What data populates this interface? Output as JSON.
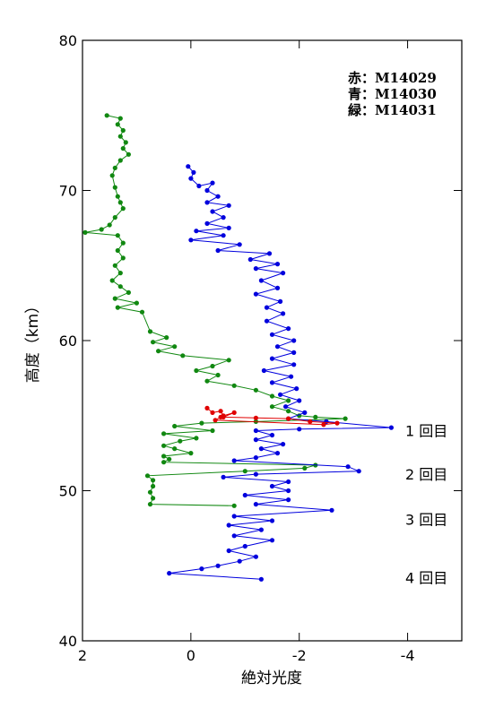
{
  "chart_data": {
    "type": "line",
    "xlabel": "絶対光度",
    "ylabel": "高度（km）",
    "xlim": [
      2,
      -5
    ],
    "ylim": [
      40,
      80
    ],
    "x_ticks": [
      2,
      0,
      -2,
      -4
    ],
    "x_tick_labels": [
      "2",
      "0",
      "-2",
      "-4"
    ],
    "y_ticks": [
      40,
      50,
      60,
      70,
      80
    ],
    "y_tick_labels": [
      "40",
      "50",
      "60",
      "70",
      "80"
    ],
    "grid": false,
    "legend_position": "top-right",
    "legend": [
      {
        "label": "赤：M14029"
      },
      {
        "label": "青：M14030"
      },
      {
        "label": "緑：M14031"
      }
    ],
    "annotations": [
      {
        "text": "1 回目",
        "y": 54.0
      },
      {
        "text": "2 回目",
        "y": 51.1
      },
      {
        "text": "3 回目",
        "y": 48.1
      },
      {
        "text": "4 回目",
        "y": 44.2
      }
    ],
    "series": [
      {
        "color": "#e00000",
        "points": [
          [
            -0.3,
            55.5
          ],
          [
            -0.4,
            55.2
          ],
          [
            -0.55,
            55.3
          ],
          [
            -0.6,
            55.0
          ],
          [
            -0.8,
            55.2
          ],
          [
            -0.6,
            54.9
          ],
          [
            -1.2,
            54.85
          ],
          [
            -1.8,
            54.8
          ],
          [
            -2.2,
            54.6
          ],
          [
            -2.7,
            54.5
          ],
          [
            -2.45,
            54.4
          ],
          [
            -0.45,
            54.7
          ],
          [
            -0.55,
            54.9
          ]
        ]
      },
      {
        "color": "#0000dd",
        "points": [
          [
            0.05,
            71.6
          ],
          [
            -0.05,
            71.2
          ],
          [
            0.0,
            70.8
          ],
          [
            -0.15,
            70.3
          ],
          [
            -0.4,
            70.5
          ],
          [
            -0.3,
            70.0
          ],
          [
            -0.5,
            69.6
          ],
          [
            -0.3,
            69.2
          ],
          [
            -0.7,
            69.0
          ],
          [
            -0.4,
            68.6
          ],
          [
            -0.6,
            68.2
          ],
          [
            -0.3,
            67.8
          ],
          [
            -0.7,
            67.5
          ],
          [
            -0.1,
            67.3
          ],
          [
            -0.6,
            67.0
          ],
          [
            0.0,
            66.7
          ],
          [
            -0.9,
            66.4
          ],
          [
            -0.5,
            66.0
          ],
          [
            -1.45,
            65.8
          ],
          [
            -1.1,
            65.4
          ],
          [
            -1.6,
            65.1
          ],
          [
            -1.2,
            64.8
          ],
          [
            -1.7,
            64.5
          ],
          [
            -1.3,
            64.0
          ],
          [
            -1.6,
            63.5
          ],
          [
            -1.2,
            63.1
          ],
          [
            -1.65,
            62.6
          ],
          [
            -1.4,
            62.2
          ],
          [
            -1.7,
            61.8
          ],
          [
            -1.4,
            61.3
          ],
          [
            -1.8,
            60.8
          ],
          [
            -1.5,
            60.4
          ],
          [
            -1.9,
            60.0
          ],
          [
            -1.6,
            59.6
          ],
          [
            -1.9,
            59.2
          ],
          [
            -1.5,
            58.8
          ],
          [
            -1.9,
            58.4
          ],
          [
            -1.35,
            58.0
          ],
          [
            -1.85,
            57.6
          ],
          [
            -1.5,
            57.2
          ],
          [
            -1.95,
            56.8
          ],
          [
            -1.65,
            56.4
          ],
          [
            -2.0,
            56.0
          ],
          [
            -1.75,
            55.6
          ],
          [
            -2.1,
            55.2
          ],
          [
            -1.8,
            54.8
          ],
          [
            -2.5,
            54.6
          ],
          [
            -3.7,
            54.2
          ],
          [
            -2.0,
            54.1
          ],
          [
            -1.2,
            54.0
          ],
          [
            -1.5,
            53.7
          ],
          [
            -1.2,
            53.4
          ],
          [
            -1.7,
            53.1
          ],
          [
            -1.3,
            52.8
          ],
          [
            -1.6,
            52.5
          ],
          [
            -1.2,
            52.2
          ],
          [
            -0.8,
            52.0
          ],
          [
            -2.9,
            51.6
          ],
          [
            -3.1,
            51.3
          ],
          [
            -1.2,
            51.1
          ],
          [
            -0.6,
            50.9
          ],
          [
            -1.8,
            50.6
          ],
          [
            -1.5,
            50.3
          ],
          [
            -1.8,
            50.0
          ],
          [
            -1.0,
            49.7
          ],
          [
            -1.8,
            49.4
          ],
          [
            -1.2,
            49.1
          ],
          [
            -2.6,
            48.7
          ],
          [
            -0.8,
            48.3
          ],
          [
            -1.5,
            48.0
          ],
          [
            -0.7,
            47.7
          ],
          [
            -1.3,
            47.4
          ],
          [
            -0.8,
            47.0
          ],
          [
            -1.5,
            46.7
          ],
          [
            -1.0,
            46.3
          ],
          [
            -0.7,
            46.0
          ],
          [
            -1.2,
            45.6
          ],
          [
            -0.9,
            45.3
          ],
          [
            -0.5,
            45.0
          ],
          [
            -0.2,
            44.8
          ],
          [
            0.4,
            44.5
          ],
          [
            -1.3,
            44.1
          ]
        ]
      },
      {
        "color": "#118811",
        "points": [
          [
            1.55,
            75.0
          ],
          [
            1.3,
            74.8
          ],
          [
            1.35,
            74.4
          ],
          [
            1.25,
            74.0
          ],
          [
            1.3,
            73.6
          ],
          [
            1.2,
            73.2
          ],
          [
            1.25,
            72.8
          ],
          [
            1.15,
            72.4
          ],
          [
            1.3,
            72.0
          ],
          [
            1.4,
            71.5
          ],
          [
            1.45,
            71.0
          ],
          [
            1.4,
            70.2
          ],
          [
            1.35,
            69.6
          ],
          [
            1.3,
            69.2
          ],
          [
            1.25,
            68.8
          ],
          [
            1.4,
            68.2
          ],
          [
            1.5,
            67.7
          ],
          [
            1.65,
            67.4
          ],
          [
            1.95,
            67.2
          ],
          [
            1.35,
            67.0
          ],
          [
            1.25,
            66.5
          ],
          [
            1.35,
            66.0
          ],
          [
            1.25,
            65.5
          ],
          [
            1.4,
            65.0
          ],
          [
            1.3,
            64.5
          ],
          [
            1.45,
            64.0
          ],
          [
            1.3,
            63.6
          ],
          [
            1.15,
            63.2
          ],
          [
            1.4,
            62.8
          ],
          [
            1.0,
            62.5
          ],
          [
            1.35,
            62.2
          ],
          [
            0.9,
            61.9
          ],
          [
            0.75,
            60.6
          ],
          [
            0.45,
            60.2
          ],
          [
            0.7,
            59.9
          ],
          [
            0.3,
            59.6
          ],
          [
            0.6,
            59.3
          ],
          [
            0.15,
            59.0
          ],
          [
            -0.7,
            58.7
          ],
          [
            -0.4,
            58.3
          ],
          [
            -0.1,
            58.0
          ],
          [
            -0.5,
            57.7
          ],
          [
            -0.3,
            57.3
          ],
          [
            -0.8,
            57.0
          ],
          [
            -1.2,
            56.7
          ],
          [
            -1.5,
            56.3
          ],
          [
            -1.8,
            56.0
          ],
          [
            -1.5,
            55.6
          ],
          [
            -1.8,
            55.3
          ],
          [
            -2.0,
            55.0
          ],
          [
            -2.3,
            54.9
          ],
          [
            -2.85,
            54.8
          ],
          [
            -1.2,
            54.6
          ],
          [
            -0.2,
            54.5
          ],
          [
            0.3,
            54.3
          ],
          [
            -0.4,
            54.0
          ],
          [
            0.5,
            53.8
          ],
          [
            -0.1,
            53.5
          ],
          [
            0.2,
            53.3
          ],
          [
            0.5,
            53.0
          ],
          [
            0.3,
            52.8
          ],
          [
            0.0,
            52.5
          ],
          [
            0.5,
            52.3
          ],
          [
            0.4,
            52.1
          ],
          [
            0.5,
            51.9
          ],
          [
            -2.3,
            51.7
          ],
          [
            -2.1,
            51.5
          ],
          [
            -1.0,
            51.3
          ],
          [
            0.8,
            51.0
          ],
          [
            0.7,
            50.7
          ],
          [
            0.7,
            50.3
          ],
          [
            0.75,
            49.9
          ],
          [
            0.7,
            49.5
          ],
          [
            0.75,
            49.1
          ],
          [
            -0.8,
            49.0
          ]
        ]
      }
    ]
  }
}
